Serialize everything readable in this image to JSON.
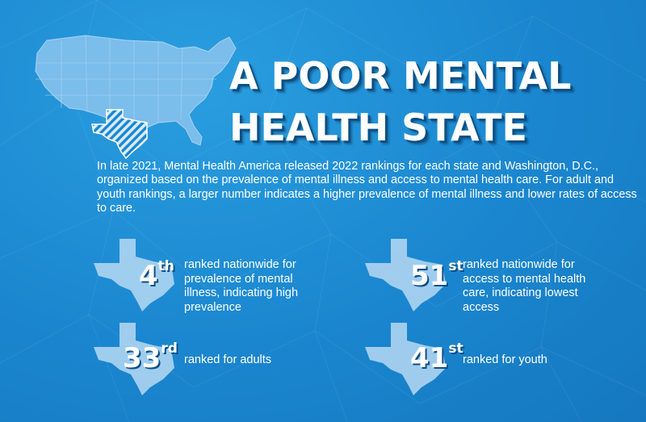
{
  "title": {
    "line1": "A POOR MENTAL",
    "line2": "HEALTH STATE"
  },
  "intro": "In late 2021, Mental Health America released 2022 rankings for each state and Washington, D.C., organized based on the prevalence of mental illness and access to mental health care. For adult and youth rankings, a larger number indicates a higher prevalence of mental illness and lower rates of access to care.",
  "stats": [
    {
      "rank": "4",
      "suffix": "th",
      "description": "ranked nationwide for prevalence of mental illness, indicating high prevalence"
    },
    {
      "rank": "51",
      "suffix": "st",
      "description": "ranked nationwide for access to mental health care, indicating lowest access"
    },
    {
      "rank": "33",
      "suffix": "rd",
      "description": "ranked for adults"
    },
    {
      "rank": "41",
      "suffix": "st",
      "description": "ranked for youth"
    }
  ],
  "colors": {
    "background": "#1a86cf",
    "map_fill": "#6bb4ea",
    "texas_fill": "#b7d9f3",
    "title_shadow": "#0c4f86"
  },
  "icons": {
    "map": "usa-map-icon",
    "state": "texas-shape-icon"
  }
}
